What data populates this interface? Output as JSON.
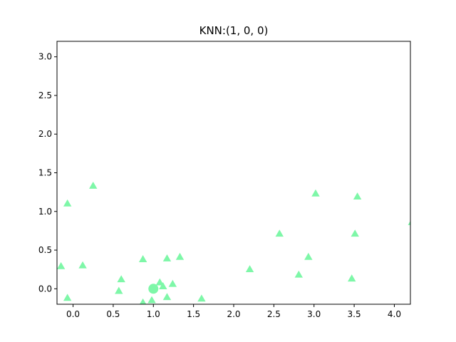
{
  "chart_data": {
    "type": "scatter",
    "title": "KNN:(1, 0, 0)",
    "xlabel": "",
    "ylabel": "",
    "xlim": [
      -0.2,
      4.2
    ],
    "ylim": [
      -0.2,
      3.2
    ],
    "xticks": [
      "0.0",
      "0.5",
      "1.0",
      "1.5",
      "2.0",
      "2.5",
      "3.0",
      "3.5",
      "4.0"
    ],
    "yticks": [
      "0.0",
      "0.5",
      "1.0",
      "1.5",
      "2.0",
      "2.5",
      "3.0"
    ],
    "grid": false,
    "legend": "none",
    "color": "#7ef7a8",
    "series": [
      {
        "marker": "triangle",
        "points": [
          [
            -0.15,
            0.29
          ],
          [
            -0.07,
            1.1
          ],
          [
            -0.07,
            -0.12
          ],
          [
            0.12,
            0.3
          ],
          [
            0.25,
            1.33
          ],
          [
            0.57,
            -0.03
          ],
          [
            0.6,
            0.12
          ],
          [
            0.87,
            0.38
          ],
          [
            0.87,
            -0.18
          ],
          [
            0.98,
            -0.15
          ],
          [
            1.08,
            0.08
          ],
          [
            1.12,
            0.03
          ],
          [
            1.17,
            0.39
          ],
          [
            1.17,
            -0.11
          ],
          [
            1.24,
            0.06
          ],
          [
            1.33,
            0.41
          ],
          [
            1.6,
            -0.13
          ],
          [
            2.2,
            0.25
          ],
          [
            2.57,
            0.71
          ],
          [
            2.81,
            0.18
          ],
          [
            2.93,
            0.41
          ],
          [
            3.02,
            1.23
          ],
          [
            3.47,
            0.13
          ],
          [
            3.51,
            0.71
          ],
          [
            3.54,
            1.19
          ],
          [
            4.22,
            0.86
          ]
        ]
      },
      {
        "marker": "circle",
        "points": [
          [
            1.0,
            0.0
          ]
        ]
      }
    ]
  }
}
